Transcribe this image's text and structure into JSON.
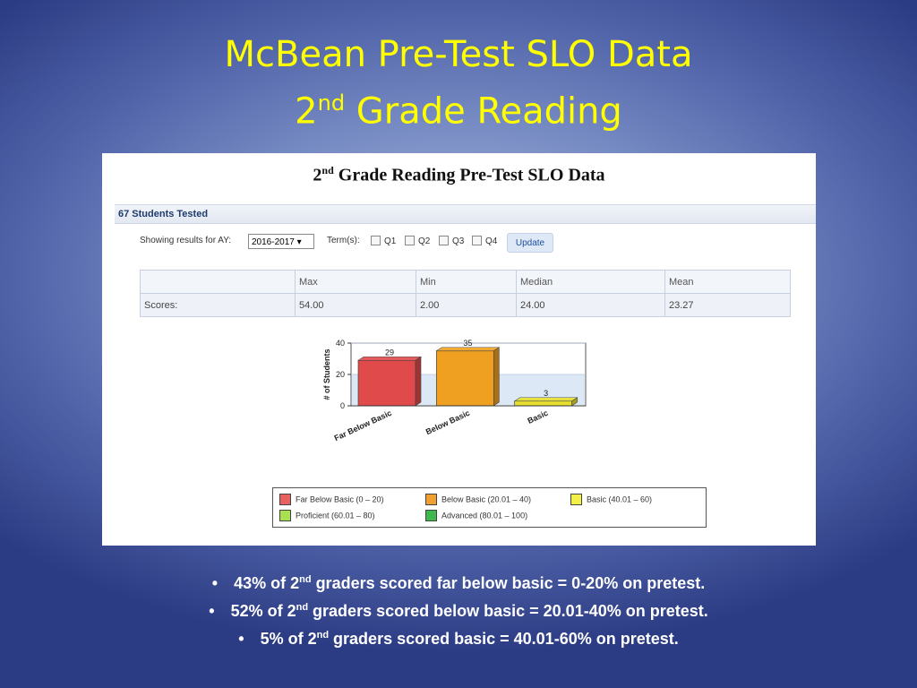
{
  "slide": {
    "title_line1": "McBean Pre-Test SLO Data",
    "title_line2_num": "2",
    "title_line2_sup": "nd",
    "title_line2_rest": " Grade Reading"
  },
  "panel": {
    "title_num": "2",
    "title_sup": "nd",
    "title_rest": " Grade Reading Pre-Test SLO Data",
    "tested": "67 Students Tested",
    "showing_label": "Showing results for AY:",
    "ay_value": "2016-2017 ▾",
    "terms_label": "Term(s):",
    "terms": [
      "Q1",
      "Q2",
      "Q3",
      "Q4"
    ],
    "update_label": "Update"
  },
  "stats": {
    "headers": [
      "",
      "Max",
      "Min",
      "Median",
      "Mean"
    ],
    "row_label": "Scores:",
    "values": [
      "54.00",
      "2.00",
      "24.00",
      "23.27"
    ]
  },
  "chart_data": {
    "type": "bar",
    "categories": [
      "Far Below Basic",
      "Below Basic",
      "Basic"
    ],
    "values": [
      29,
      35,
      3
    ],
    "colors": [
      "#e04a4a",
      "#f0a020",
      "#e8e030"
    ],
    "ylabel": "# of Students",
    "yticks": [
      "0",
      "20",
      "40"
    ],
    "ylim": [
      0,
      40
    ],
    "legend": [
      {
        "label": "Far Below Basic (0 – 20)",
        "color": "#e86060"
      },
      {
        "label": "Below Basic (20.01 – 40)",
        "color": "#f0a030"
      },
      {
        "label": "Basic (40.01 – 60)",
        "color": "#f4f04a"
      },
      {
        "label": "Proficient (60.01 – 80)",
        "color": "#a8e050"
      },
      {
        "label": "Advanced (80.01 – 100)",
        "color": "#40b850"
      }
    ]
  },
  "bullets": [
    {
      "pre": "43% of 2",
      "sup": "nd",
      "post": " graders scored far below basic = 0-20% on pretest."
    },
    {
      "pre": "52% of 2",
      "sup": "nd",
      "post": " graders  scored  below basic = 20.01-40% on pretest."
    },
    {
      "pre": "5%  of 2",
      "sup": "nd",
      "post": " graders  scored basic = 40.01-60% on pretest."
    }
  ]
}
